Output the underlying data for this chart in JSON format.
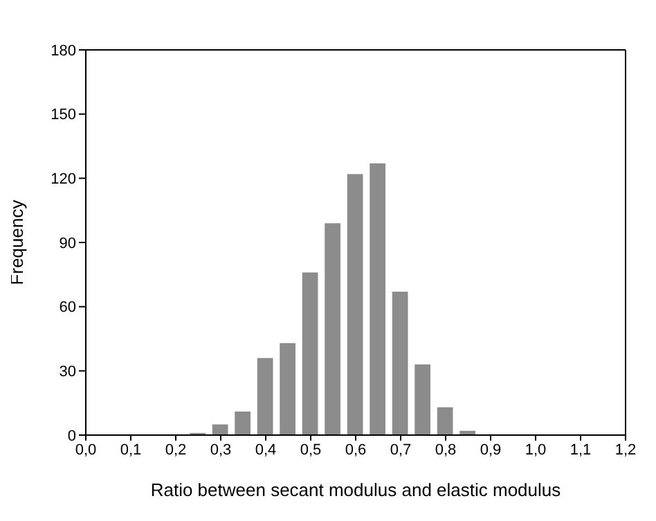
{
  "chart_data": {
    "type": "bar",
    "xlabel": "Ratio between secant modulus and elastic modulus",
    "ylabel": "Frequency",
    "x": [
      0.25,
      0.3,
      0.35,
      0.4,
      0.45,
      0.5,
      0.55,
      0.6,
      0.65,
      0.7,
      0.75,
      0.8,
      0.85
    ],
    "values": [
      1,
      5,
      11,
      36,
      43,
      76,
      99,
      122,
      127,
      67,
      33,
      13,
      2
    ],
    "color": "#8c8c8c",
    "xlim": [
      0,
      1.2
    ],
    "xticks": [
      {
        "value": 0,
        "label": "0,0"
      },
      {
        "value": 0.1,
        "label": "0,1"
      },
      {
        "value": 0.2,
        "label": "0,2"
      },
      {
        "value": 0.3,
        "label": "0,3"
      },
      {
        "value": 0.4,
        "label": "0,4"
      },
      {
        "value": 0.5,
        "label": "0,5"
      },
      {
        "value": 0.6,
        "label": "0,6"
      },
      {
        "value": 0.7,
        "label": "0,7"
      },
      {
        "value": 0.8,
        "label": "0,8"
      },
      {
        "value": 0.9,
        "label": "0,9"
      },
      {
        "value": 1,
        "label": "1,0"
      },
      {
        "value": 1.1,
        "label": "1,1"
      },
      {
        "value": 1.2,
        "label": "1,2"
      }
    ],
    "ylim": [
      0,
      180
    ],
    "yticks": [
      0,
      30,
      60,
      90,
      120,
      150,
      180
    ],
    "grid": false,
    "legend": false
  }
}
